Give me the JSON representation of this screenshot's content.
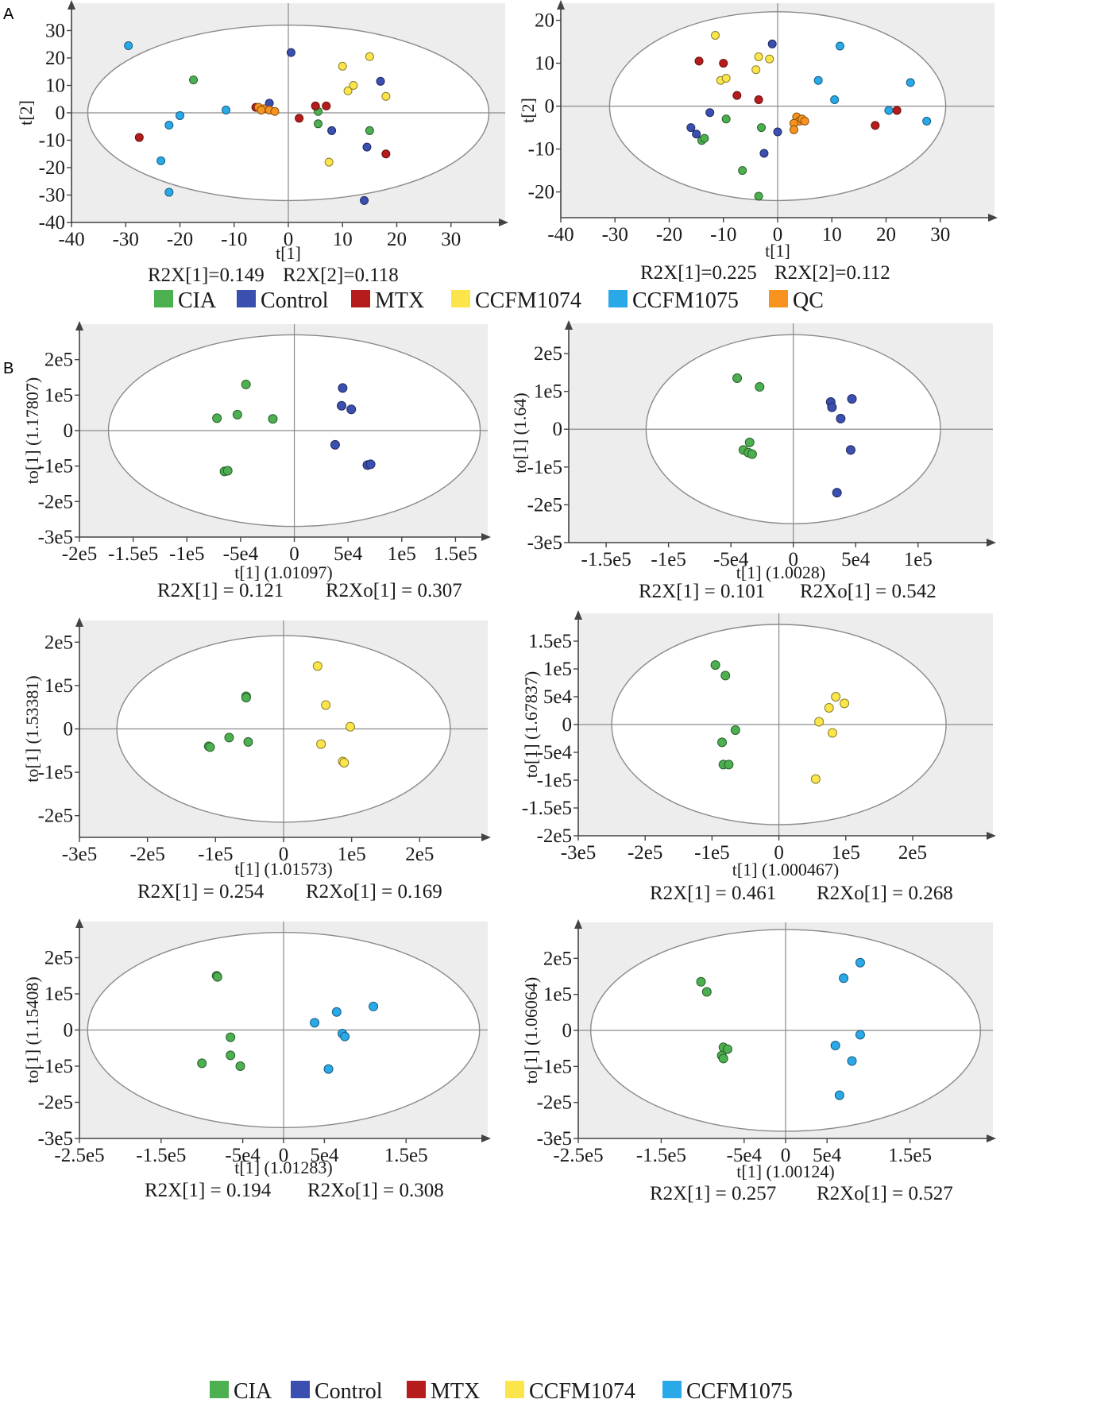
{
  "panel_labels": [
    "A",
    "B"
  ],
  "colors": {
    "CIA": "#4caf50",
    "Control": "#3b4fb0",
    "MTX": "#b71c1c",
    "CCFM1074": "#fbe54a",
    "CCFM1075": "#29a9e8",
    "QC": "#f7931e"
  },
  "legends": {
    "A": [
      "CIA",
      "Control",
      "MTX",
      "CCFM1074",
      "CCFM1075",
      "QC"
    ],
    "B": [
      "CIA",
      "Control",
      "MTX",
      "CCFM1074",
      "CCFM1075"
    ]
  },
  "chart_data": [
    {
      "id": "A1",
      "type": "scatter",
      "title": "",
      "xlabel": "t[1]",
      "ylabel": "t[2]",
      "xlim": [
        -40,
        40
      ],
      "ylim": [
        -40,
        40
      ],
      "xticks": [
        -40,
        -30,
        -20,
        -10,
        0,
        10,
        20,
        30
      ],
      "yticks": [
        30,
        20,
        10,
        0,
        -10,
        -20,
        -30,
        -40
      ],
      "xtick_labels": [
        "-40",
        "-30",
        "-20",
        "-10",
        "0",
        "10",
        "20",
        "30"
      ],
      "ytick_labels": [
        "30",
        "20",
        "10",
        "0",
        "-10",
        "-20",
        "-30",
        "-40"
      ],
      "ellipse": {
        "rx": 37,
        "ry": 32
      },
      "stats": [
        "R2X[1]=0.149",
        "R2X[2]=0.118"
      ],
      "series": [
        {
          "name": "CIA",
          "points": [
            [
              -17.5,
              12
            ],
            [
              5.5,
              0.5
            ],
            [
              5.5,
              -4
            ],
            [
              15,
              -6.5
            ]
          ]
        },
        {
          "name": "Control",
          "points": [
            [
              0.5,
              22
            ],
            [
              -3.5,
              3.5
            ],
            [
              8,
              -6.5
            ],
            [
              17,
              11.5
            ],
            [
              14.5,
              -12.5
            ],
            [
              14,
              -32
            ]
          ]
        },
        {
          "name": "MTX",
          "points": [
            [
              -27.5,
              -9
            ],
            [
              2,
              -2
            ],
            [
              5,
              2.5
            ],
            [
              7,
              2.5
            ],
            [
              18,
              -15
            ],
            [
              -6,
              2
            ]
          ]
        },
        {
          "name": "CCFM1074",
          "points": [
            [
              10,
              17
            ],
            [
              15,
              20.5
            ],
            [
              11,
              8
            ],
            [
              12,
              10
            ],
            [
              18,
              6
            ],
            [
              7.5,
              -18
            ]
          ]
        },
        {
          "name": "CCFM1075",
          "points": [
            [
              -29.5,
              24.5
            ],
            [
              -20,
              -1
            ],
            [
              -22,
              -4.5
            ],
            [
              -11.5,
              1
            ],
            [
              -23.5,
              -17.5
            ],
            [
              -22,
              -29
            ]
          ]
        },
        {
          "name": "QC",
          "points": [
            [
              -5.5,
              2
            ],
            [
              -4.5,
              1.5
            ],
            [
              -3.5,
              1
            ],
            [
              -2.5,
              0.5
            ],
            [
              -5,
              1
            ]
          ]
        }
      ]
    },
    {
      "id": "A2",
      "type": "scatter",
      "title": "",
      "xlabel": "t[1]",
      "ylabel": "t[2]",
      "xlim": [
        -40,
        40
      ],
      "ylim": [
        -26,
        24
      ],
      "xticks": [
        -40,
        -30,
        -20,
        -10,
        0,
        10,
        20,
        30
      ],
      "yticks": [
        20,
        10,
        0,
        -10,
        -20
      ],
      "xtick_labels": [
        "-40",
        "-30",
        "-20",
        "-10",
        "0",
        "10",
        "20",
        "30"
      ],
      "ytick_labels": [
        "20",
        "10",
        "0",
        "-10",
        "-20"
      ],
      "ellipse": {
        "rx": 31,
        "ry": 22
      },
      "stats": [
        "R2X[1]=0.225",
        "R2X[2]=0.112"
      ],
      "series": [
        {
          "name": "CIA",
          "points": [
            [
              -14,
              -8
            ],
            [
              -13.5,
              -7.5
            ],
            [
              -9.5,
              -3
            ],
            [
              -3,
              -5
            ],
            [
              -6.5,
              -15
            ],
            [
              -3.5,
              -21
            ]
          ]
        },
        {
          "name": "Control",
          "points": [
            [
              -1,
              14.5
            ],
            [
              -16,
              -5
            ],
            [
              -15,
              -6.5
            ],
            [
              -12.5,
              -1.5
            ],
            [
              -2.5,
              -11
            ],
            [
              0,
              -6
            ]
          ]
        },
        {
          "name": "MTX",
          "points": [
            [
              -14.5,
              10.5
            ],
            [
              -10,
              10
            ],
            [
              -7.5,
              2.5
            ],
            [
              -3.5,
              1.5
            ],
            [
              18,
              -4.5
            ],
            [
              22,
              -1
            ]
          ]
        },
        {
          "name": "CCFM1074",
          "points": [
            [
              -11.5,
              16.5
            ],
            [
              -3.5,
              11.5
            ],
            [
              -1.5,
              11
            ],
            [
              -4,
              8.5
            ],
            [
              -10.5,
              6
            ],
            [
              -9.5,
              6.5
            ]
          ]
        },
        {
          "name": "CCFM1075",
          "points": [
            [
              11.5,
              14
            ],
            [
              7.5,
              6
            ],
            [
              10.5,
              1.5
            ],
            [
              24.5,
              5.5
            ],
            [
              20.5,
              -1
            ],
            [
              27.5,
              -3.5
            ]
          ]
        },
        {
          "name": "QC",
          "points": [
            [
              3.5,
              -2.5
            ],
            [
              4,
              -3.5
            ],
            [
              3,
              -4
            ],
            [
              4.5,
              -3
            ],
            [
              3,
              -5.5
            ],
            [
              5,
              -3.5
            ]
          ]
        }
      ]
    },
    {
      "id": "B1",
      "type": "scatter",
      "title": "",
      "xlabel": "t[1] (1.01097)",
      "ylabel": "to[1]  (1.17807)",
      "xlim": [
        -200000,
        180000
      ],
      "ylim": [
        -300000,
        300000
      ],
      "xticks": [
        -200000,
        -150000,
        -100000,
        -50000,
        0,
        50000,
        100000,
        150000
      ],
      "yticks": [
        200000,
        100000,
        0,
        -100000,
        -200000,
        -300000
      ],
      "xtick_labels": [
        "-2e5",
        "-1.5e5",
        "-1e5",
        "-5e4",
        "0",
        "5e4",
        "1e5",
        "1.5e5"
      ],
      "ytick_labels": [
        "2e5",
        "1e5",
        "0",
        "-1e5",
        "-2e5",
        "-3e5"
      ],
      "ellipse": {
        "rx": 173000,
        "ry": 270000
      },
      "stats": [
        "R2X[1] = 0.121",
        "R2Xo[1] = 0.307"
      ],
      "series": [
        {
          "name": "CIA",
          "points": [
            [
              -45000,
              130000
            ],
            [
              -53000,
              45000
            ],
            [
              -72000,
              35000
            ],
            [
              -20000,
              33000
            ],
            [
              -65000,
              -115000
            ],
            [
              -62000,
              -113000
            ]
          ]
        },
        {
          "name": "Control",
          "points": [
            [
              45000,
              120000
            ],
            [
              44000,
              70000
            ],
            [
              53000,
              60000
            ],
            [
              38000,
              -40000
            ],
            [
              68000,
              -97000
            ],
            [
              71000,
              -95000
            ]
          ]
        }
      ]
    },
    {
      "id": "B2",
      "type": "scatter",
      "title": "",
      "xlabel": "t[1] (1.0028)",
      "ylabel": "to[1]  (1.64)",
      "xlim": [
        -180000,
        160000
      ],
      "ylim": [
        -300000,
        280000
      ],
      "xticks": [
        -150000,
        -100000,
        -50000,
        0,
        50000,
        100000
      ],
      "yticks": [
        200000,
        100000,
        0,
        -100000,
        -200000,
        -300000
      ],
      "xtick_labels": [
        "-1.5e5",
        "-1e5",
        "-5e4",
        "0",
        "5e4",
        "1e5"
      ],
      "ytick_labels": [
        "2e5",
        "1e5",
        "0",
        "-1e5",
        "-2e5",
        "-3e5"
      ],
      "ellipse": {
        "rx": 118000,
        "ry": 250000
      },
      "stats": [
        "R2X[1] = 0.101",
        "R2Xo[1] = 0.542"
      ],
      "series": [
        {
          "name": "CIA",
          "points": [
            [
              -45000,
              135000
            ],
            [
              -27000,
              112000
            ],
            [
              -40000,
              -55000
            ],
            [
              -35000,
              -35000
            ],
            [
              -36000,
              -62000
            ],
            [
              -33000,
              -66000
            ]
          ]
        },
        {
          "name": "Control",
          "points": [
            [
              30000,
              72000
            ],
            [
              47000,
              80000
            ],
            [
              31000,
              58000
            ],
            [
              38000,
              28000
            ],
            [
              46000,
              -55000
            ],
            [
              35000,
              -168000
            ]
          ]
        }
      ]
    },
    {
      "id": "B3",
      "type": "scatter",
      "title": "",
      "xlabel": "t[1] (1.01573)",
      "ylabel": "to[1]  (1.53381)",
      "xlim": [
        -300000,
        300000
      ],
      "ylim": [
        -250000,
        250000
      ],
      "xticks": [
        -300000,
        -200000,
        -100000,
        0,
        100000,
        200000
      ],
      "yticks": [
        200000,
        100000,
        0,
        -100000,
        -200000
      ],
      "xtick_labels": [
        "-3e5",
        "-2e5",
        "-1e5",
        "0",
        "1e5",
        "2e5"
      ],
      "ytick_labels": [
        "2e5",
        "1e5",
        "0",
        "-1e5",
        "-2e5"
      ],
      "ellipse": {
        "rx": 245000,
        "ry": 215000
      },
      "stats": [
        "R2X[1] = 0.254",
        "R2Xo[1] = 0.169"
      ],
      "series": [
        {
          "name": "CIA",
          "points": [
            [
              -55000,
              75000
            ],
            [
              -55000,
              72000
            ],
            [
              -80000,
              -20000
            ],
            [
              -110000,
              -40000
            ],
            [
              -108000,
              -42000
            ],
            [
              -52000,
              -30000
            ]
          ]
        },
        {
          "name": "CCFM1074",
          "points": [
            [
              50000,
              145000
            ],
            [
              62000,
              55000
            ],
            [
              98000,
              5000
            ],
            [
              55000,
              -35000
            ],
            [
              87000,
              -75000
            ],
            [
              89000,
              -78000
            ]
          ]
        }
      ]
    },
    {
      "id": "B4",
      "type": "scatter",
      "title": "",
      "xlabel": "t[1] (1.000467)",
      "ylabel": "to[1]  (1.67837)",
      "xlim": [
        -300000,
        320000
      ],
      "ylim": [
        -200000,
        200000
      ],
      "xticks": [
        -300000,
        -200000,
        -100000,
        0,
        100000,
        200000
      ],
      "yticks": [
        150000,
        100000,
        50000,
        0,
        -50000,
        -100000,
        -150000,
        -200000
      ],
      "xtick_labels": [
        "-3e5",
        "-2e5",
        "-1e5",
        "0",
        "1e5",
        "2e5"
      ],
      "ytick_labels": [
        "1.5e5",
        "1e5",
        "5e4",
        "0",
        "-5e4",
        "-1e5",
        "-1.5e5",
        "-2e5"
      ],
      "ellipse": {
        "rx": 250000,
        "ry": 180000
      },
      "stats": [
        "R2X[1] = 0.461",
        "R2Xo[1] = 0.268"
      ],
      "series": [
        {
          "name": "CIA",
          "points": [
            [
              -95000,
              107000
            ],
            [
              -80000,
              88000
            ],
            [
              -65000,
              -10000
            ],
            [
              -85000,
              -32000
            ],
            [
              -83000,
              -72000
            ],
            [
              -75000,
              -72000
            ]
          ]
        },
        {
          "name": "CCFM1074",
          "points": [
            [
              85000,
              50000
            ],
            [
              98000,
              38000
            ],
            [
              75000,
              30000
            ],
            [
              60000,
              5000
            ],
            [
              80000,
              -15000
            ],
            [
              55000,
              -98000
            ]
          ]
        }
      ]
    },
    {
      "id": "B5",
      "type": "scatter",
      "title": "",
      "xlabel": "t[1] (1.01283)",
      "ylabel": "to[1]  (1.15408)",
      "xlim": [
        -250000,
        250000
      ],
      "ylim": [
        -300000,
        300000
      ],
      "xticks": [
        -250000,
        -150000,
        -50000,
        0,
        50000,
        150000
      ],
      "yticks": [
        200000,
        100000,
        0,
        -100000,
        -200000,
        -300000
      ],
      "xtick_labels": [
        "-2.5e5",
        "-1.5e5",
        "-5e4",
        "0",
        "5e4",
        "1.5e5"
      ],
      "ytick_labels": [
        "2e5",
        "1e5",
        "0",
        "-1e5",
        "-2e5",
        "-3e5"
      ],
      "ellipse": {
        "rx": 240000,
        "ry": 270000
      },
      "stats": [
        "R2X[1] = 0.194",
        "R2Xo[1] = 0.308"
      ],
      "series": [
        {
          "name": "CIA",
          "points": [
            [
              -82000,
              150000
            ],
            [
              -81000,
              147000
            ],
            [
              -65000,
              -20000
            ],
            [
              -65000,
              -70000
            ],
            [
              -100000,
              -92000
            ],
            [
              -53000,
              -100000
            ]
          ]
        },
        {
          "name": "CCFM1075",
          "points": [
            [
              38000,
              20000
            ],
            [
              65000,
              50000
            ],
            [
              110000,
              65000
            ],
            [
              72000,
              -10000
            ],
            [
              75000,
              -18000
            ],
            [
              55000,
              -108000
            ]
          ]
        }
      ]
    },
    {
      "id": "B6",
      "type": "scatter",
      "title": "",
      "xlabel": "t[1] (1.00124)",
      "ylabel": "to[1]  (1.06064)",
      "xlim": [
        -250000,
        250000
      ],
      "ylim": [
        -300000,
        300000
      ],
      "xticks": [
        -250000,
        -150000,
        -50000,
        0,
        50000,
        150000
      ],
      "yticks": [
        200000,
        100000,
        0,
        -100000,
        -200000,
        -300000
      ],
      "xtick_labels": [
        "-2.5e5",
        "-1.5e5",
        "-5e4",
        "0",
        "5e4",
        "1.5e5"
      ],
      "ytick_labels": [
        "2e5",
        "1e5",
        "0",
        "-1e5",
        "-2e5",
        "-3e5"
      ],
      "ellipse": {
        "rx": 235000,
        "ry": 280000
      },
      "stats": [
        "R2X[1] = 0.257",
        "R2Xo[1] = 0.527"
      ],
      "series": [
        {
          "name": "CIA",
          "points": [
            [
              -102000,
              135000
            ],
            [
              -95000,
              107000
            ],
            [
              -75000,
              -47000
            ],
            [
              -70000,
              -52000
            ],
            [
              -77000,
              -70000
            ],
            [
              -75000,
              -78000
            ]
          ]
        },
        {
          "name": "CCFM1075",
          "points": [
            [
              90000,
              188000
            ],
            [
              70000,
              145000
            ],
            [
              90000,
              -12000
            ],
            [
              60000,
              -42000
            ],
            [
              80000,
              -85000
            ],
            [
              65000,
              -180000
            ]
          ]
        }
      ]
    }
  ]
}
